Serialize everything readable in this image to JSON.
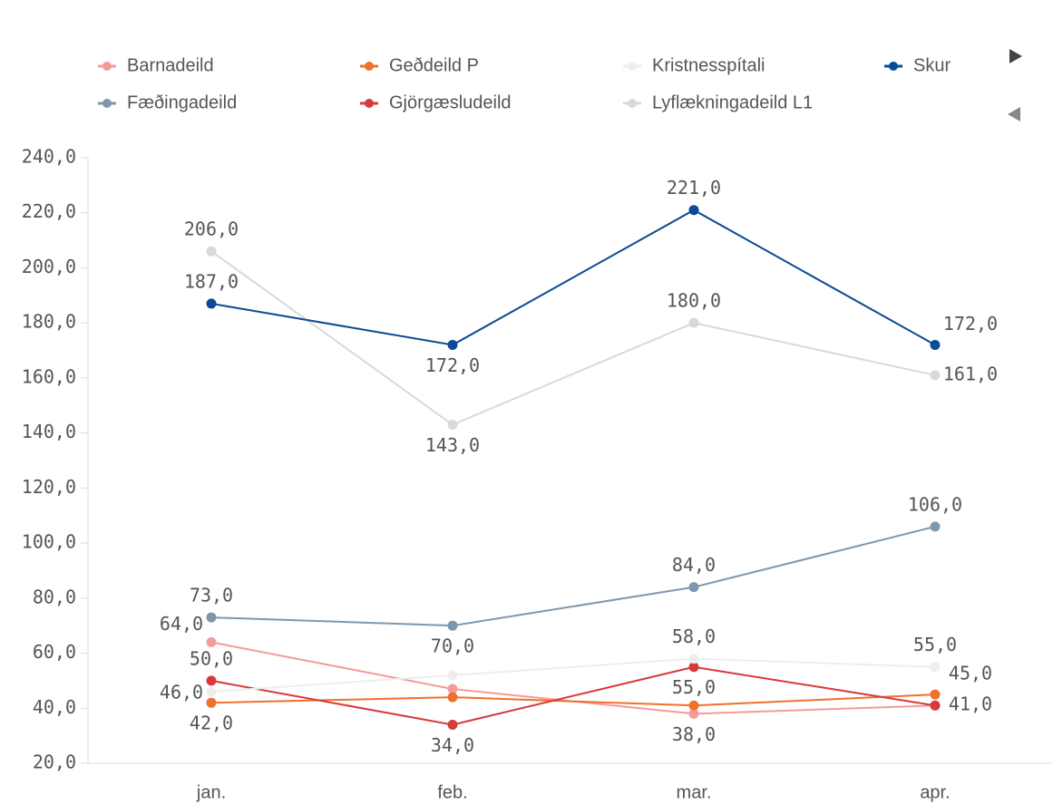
{
  "chart_data": {
    "type": "line",
    "categories": [
      "jan.",
      "feb.",
      "mar.",
      "apr."
    ],
    "ylim": [
      20,
      240
    ],
    "yticks": [
      {
        "value": 20,
        "label": "20,0"
      },
      {
        "value": 40,
        "label": "40,0"
      },
      {
        "value": 60,
        "label": "60,0"
      },
      {
        "value": 80,
        "label": "80,0"
      },
      {
        "value": 100,
        "label": "100,0"
      },
      {
        "value": 120,
        "label": "120,0"
      },
      {
        "value": 140,
        "label": "140,0"
      },
      {
        "value": 160,
        "label": "160,0"
      },
      {
        "value": 180,
        "label": "180,0"
      },
      {
        "value": 200,
        "label": "200,0"
      },
      {
        "value": 220,
        "label": "220,0"
      },
      {
        "value": 240,
        "label": "240,0"
      }
    ],
    "grid": false,
    "legend": "top",
    "series": [
      {
        "name": "Barnadeild",
        "color": "#f49a9a",
        "values": [
          64,
          47,
          38,
          41
        ],
        "value_labels": [
          "64,0",
          null,
          "38,0",
          null
        ]
      },
      {
        "name": "Fæðingadeild",
        "color": "#7f97ad",
        "values": [
          73,
          70,
          84,
          106
        ],
        "value_labels": [
          "73,0",
          "70,0",
          "84,0",
          "106,0"
        ]
      },
      {
        "name": "Geðdeild P",
        "color": "#f0702d",
        "values": [
          42,
          44,
          41,
          45
        ],
        "value_labels": [
          "42,0",
          null,
          null,
          "45,0"
        ]
      },
      {
        "name": "Gjörgæsludeild",
        "color": "#d63a3a",
        "values": [
          50,
          34,
          55,
          41
        ],
        "value_labels": [
          "50,0",
          "34,0",
          "55,0",
          "41,0"
        ]
      },
      {
        "name": "Kristnesspítali",
        "color": "#eeeeee",
        "values": [
          46,
          52,
          58,
          55
        ],
        "value_labels": [
          "46,0",
          null,
          "58,0",
          "55,0"
        ]
      },
      {
        "name": "Lyflækningadeild L1",
        "color": "#d9d9d9",
        "values": [
          206,
          143,
          180,
          161
        ],
        "value_labels": [
          "206,0",
          "143,0",
          "180,0",
          "161,0"
        ]
      },
      {
        "name": "Skur",
        "color": "#0b4a94",
        "values": [
          187,
          172,
          221,
          172
        ],
        "value_labels": [
          "187,0",
          "172,0",
          "221,0",
          "172,0"
        ]
      }
    ]
  }
}
